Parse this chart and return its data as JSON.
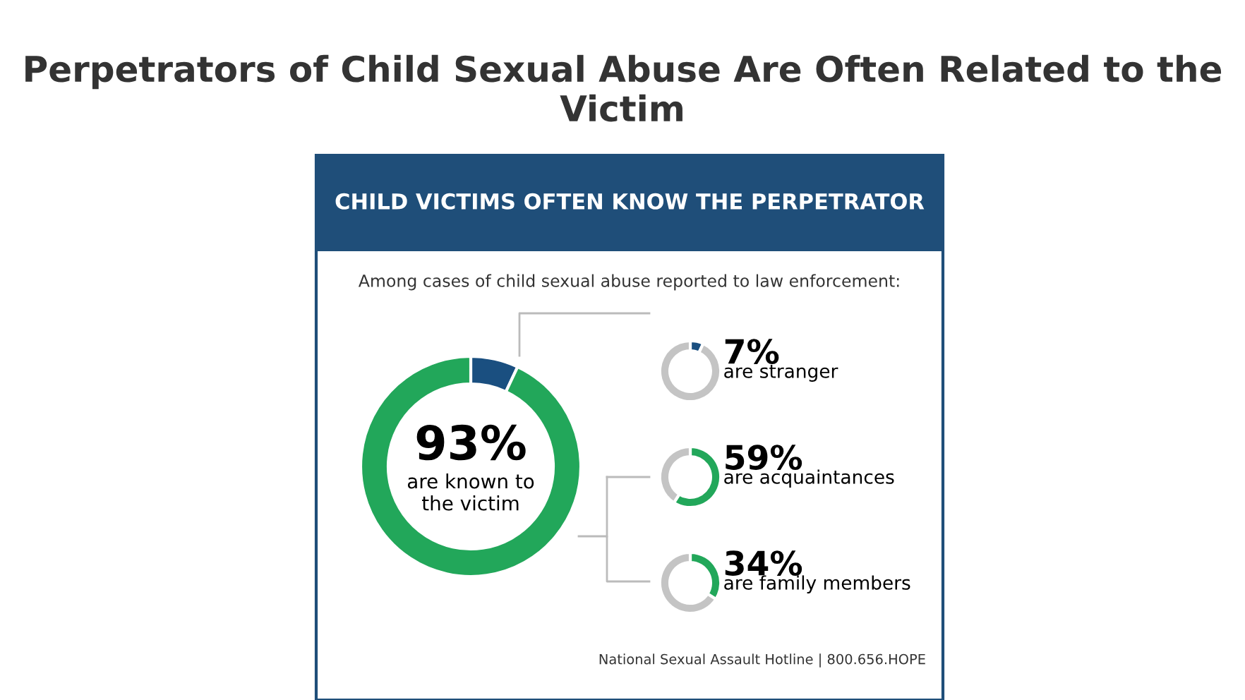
{
  "chart_data": [
    {
      "type": "donut",
      "title": "Perpetrators of Child Sexual Abuse Are Often Related to the Victim",
      "subtitle": "CHILD VICTIMS OFTEN KNOW THE PERPETRATOR",
      "annotations": [
        "Among cases of child sexual abuse reported to law enforcement:",
        "National Sexual Assault Hotline | 800.656.HOPE"
      ],
      "categories": [
        null,
        "are known to the victim"
      ],
      "values": [
        7,
        93
      ],
      "colors": [
        "#1a4f80",
        "#22a75a"
      ],
      "value_labels": [
        null,
        "93%"
      ]
    },
    {
      "type": "donut",
      "categories": [
        "are stranger",
        null
      ],
      "values": [
        7,
        93
      ],
      "colors": [
        "#1a4f80",
        "#c4c4c4"
      ],
      "value_labels": [
        "7%",
        null
      ]
    },
    {
      "type": "donut",
      "categories": [
        "are acquaintances",
        null
      ],
      "values": [
        59,
        41
      ],
      "colors": [
        "#22a75a",
        "#c4c4c4"
      ],
      "value_labels": [
        "59%",
        null
      ]
    },
    {
      "type": "donut",
      "categories": [
        "are family members",
        null
      ],
      "values": [
        34,
        66
      ],
      "colors": [
        "#22a75a",
        "#c4c4c4"
      ],
      "value_labels": [
        "34%",
        null
      ]
    }
  ]
}
